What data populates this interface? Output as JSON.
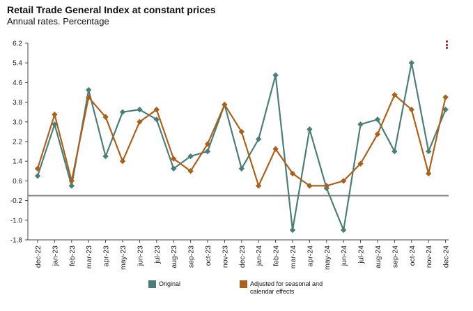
{
  "chart_data": {
    "type": "line",
    "title": "Retail Trade General Index at constant prices",
    "subtitle": "Annual rates. Percentage",
    "xlabel": "",
    "ylabel": "",
    "ylim": [
      -1.8,
      6.2
    ],
    "yticks": [
      "6.2",
      "5.4",
      "4.6",
      "3.8",
      "3.0",
      "2.2",
      "1.4",
      "0.6",
      "-0.2",
      "-1.0",
      "-1.8"
    ],
    "baseline": 0,
    "categories": [
      "dec-22",
      "jan-23",
      "feb-23",
      "mar-23",
      "apr-23",
      "may-23",
      "jun-23",
      "jul-23",
      "aug-23",
      "sep-23",
      "oct-23",
      "nov-23",
      "dec-23",
      "jan-24",
      "feb-24",
      "mar-24",
      "apr-24",
      "may-24",
      "jun-24",
      "jul-24",
      "aug-24",
      "sep-24",
      "oct-24",
      "nov-24",
      "dec-24"
    ],
    "series": [
      {
        "name": "Original",
        "color": "#4e7d78",
        "values": [
          0.8,
          2.9,
          0.4,
          4.3,
          1.6,
          3.4,
          3.5,
          3.1,
          1.1,
          1.6,
          1.8,
          3.7,
          1.1,
          2.3,
          4.9,
          -1.4,
          2.7,
          0.3,
          -1.4,
          2.9,
          3.1,
          1.8,
          5.4,
          1.8,
          3.5
        ]
      },
      {
        "name": "Adjusted for seasonal and calendar effects",
        "color": "#a8621f",
        "values": [
          1.1,
          3.3,
          0.6,
          4.0,
          3.2,
          1.4,
          3.0,
          3.5,
          1.5,
          1.0,
          2.1,
          3.7,
          2.6,
          0.4,
          1.9,
          0.9,
          0.4,
          0.4,
          0.6,
          1.3,
          2.5,
          4.1,
          3.5,
          0.9,
          4.0
        ]
      }
    ],
    "legend": {
      "position": "bottom",
      "entries": [
        {
          "label_lines": [
            "Original"
          ]
        },
        {
          "label_lines": [
            "Adjusted for seasonal and",
            "calendar effects"
          ]
        }
      ]
    }
  },
  "menu": {
    "icon": "vertical-dots-icon",
    "color": "#9b2a2a"
  }
}
